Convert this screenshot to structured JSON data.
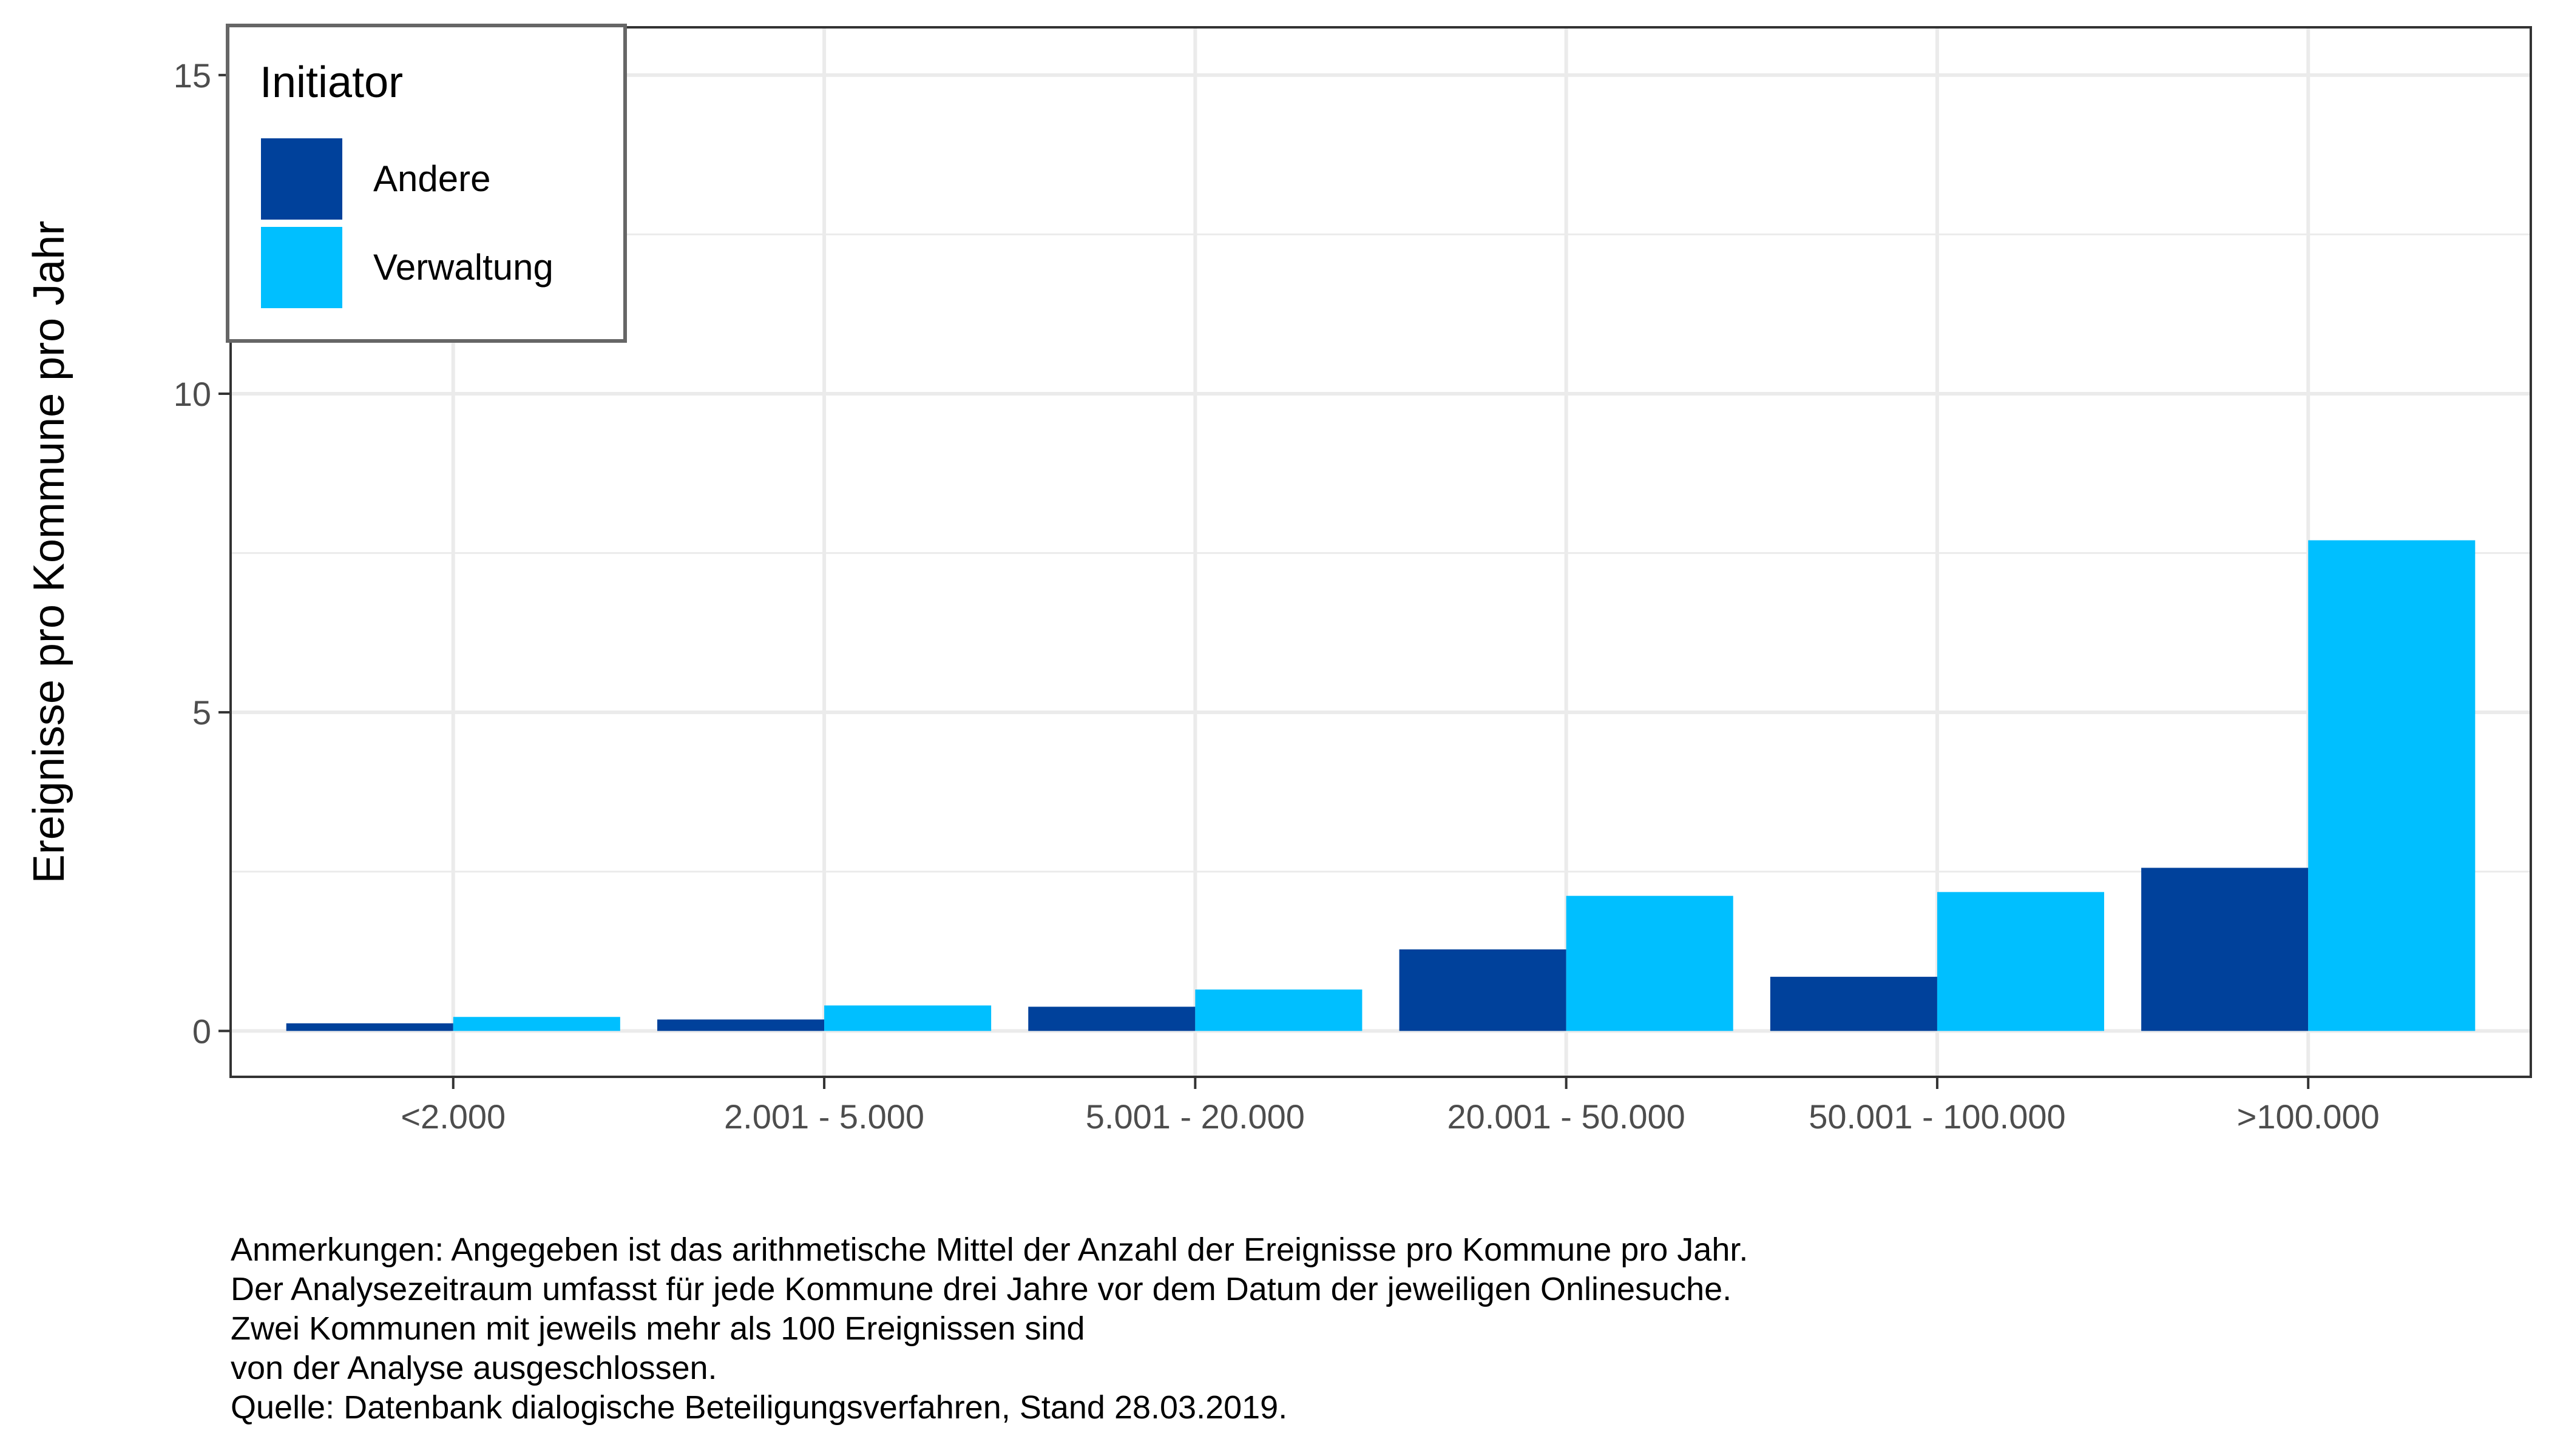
{
  "chart_data": {
    "type": "bar",
    "categories": [
      "<2.000",
      "2.001 - 5.000",
      "5.001 - 20.000",
      "20.001 - 50.000",
      "50.001 - 100.000",
      ">100.000"
    ],
    "series": [
      {
        "name": "Andere",
        "color": "#00419b",
        "values": [
          0.12,
          0.18,
          0.38,
          1.28,
          0.85,
          2.56
        ]
      },
      {
        "name": "Verwaltung",
        "color": "#00bfff",
        "values": [
          0.22,
          0.4,
          0.65,
          2.12,
          2.18,
          7.7
        ]
      }
    ],
    "ylabel": "Ereignisse pro Kommune pro Jahr",
    "xlabel": "",
    "yticks": [
      0,
      5,
      10,
      15
    ],
    "ylim": [
      -0.72,
      15.75
    ],
    "grid": true,
    "legend": {
      "title": "Initiator",
      "position": "top-left"
    }
  },
  "caption": {
    "lines": [
      "Anmerkungen: Angegeben ist das arithmetische Mittel der Anzahl der Ereignisse pro Kommune pro Jahr.",
      "Der Analysezeitraum umfasst für jede Kommune drei Jahre vor dem Datum der jeweiligen Onlinesuche.",
      "Zwei Kommunen mit jeweils mehr als 100 Ereignissen sind",
      "von der Analyse ausgeschlossen.",
      "Quelle: Datenbank dialogische Beteiligungsverfahren, Stand 28.03.2019."
    ]
  }
}
